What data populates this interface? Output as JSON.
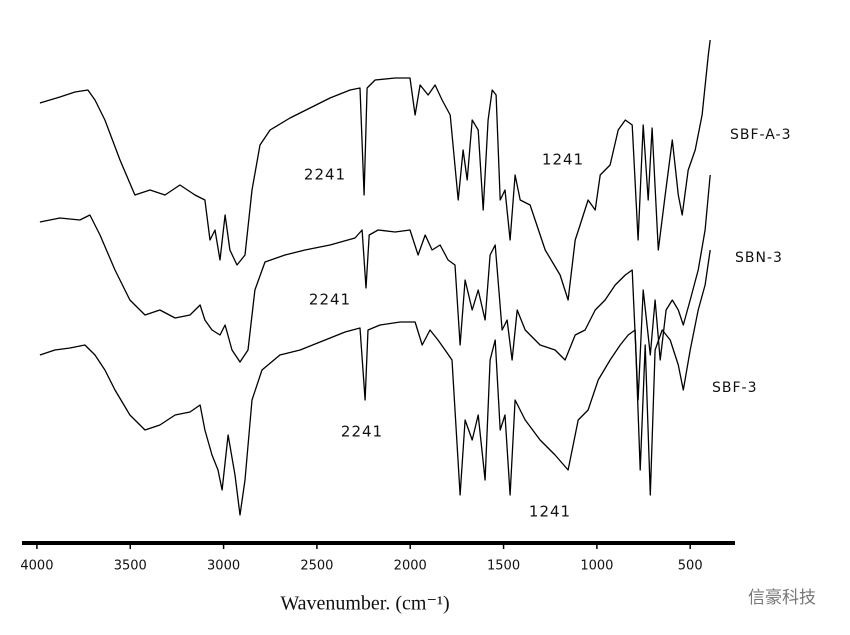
{
  "chart_data": {
    "type": "line",
    "x_label": "Wavenumber. (cm⁻¹)",
    "xlim": [
      4080,
      260
    ],
    "xticks": [
      4000,
      3500,
      3000,
      2500,
      2000,
      1500,
      1000,
      500
    ],
    "ylim": [
      0,
      106
    ],
    "annotations": [
      "2241",
      "2241",
      "2241",
      "1241",
      "1241"
    ],
    "watermark": "信豪科技",
    "series": [
      {
        "name": "SBF-A-3",
        "color": "#000000",
        "x": [
          3984,
          3877,
          3796,
          3727,
          3689,
          3636,
          3555,
          3475,
          3394,
          3314,
          3234,
          3153,
          3100,
          3073,
          3046,
          3019,
          2992,
          2966,
          2928,
          2885,
          2848,
          2805,
          2751,
          2644,
          2537,
          2430,
          2322,
          2269,
          2247,
          2231,
          2188,
          2081,
          2001,
          1974,
          1947,
          1904,
          1867,
          1829,
          1786,
          1743,
          1717,
          1695,
          1668,
          1636,
          1609,
          1583,
          1561,
          1540,
          1518,
          1492,
          1465,
          1438,
          1411,
          1358,
          1277,
          1197,
          1154,
          1116,
          1090,
          1047,
          1009,
          982,
          929,
          886,
          848,
          811,
          779,
          752,
          725,
          704,
          671,
          634,
          596,
          564,
          543,
          511,
          473,
          436,
          403,
          393
        ],
        "values": [
          91.4,
          92.6,
          93.6,
          94,
          92,
          88,
          80,
          73,
          74,
          73,
          75,
          73,
          72,
          64,
          66,
          60,
          69,
          62,
          59,
          61,
          74,
          83,
          86,
          88.4,
          90.4,
          92.4,
          94,
          94.4,
          73,
          94.4,
          96,
          96.4,
          96.4,
          89,
          95,
          93,
          95,
          92,
          89,
          72,
          82,
          76,
          88,
          86,
          70,
          88,
          94,
          93,
          72,
          74,
          64,
          77,
          72,
          71,
          62,
          57,
          52,
          64,
          67,
          72,
          70,
          77,
          79,
          86,
          88,
          87,
          64,
          87,
          72,
          86.4,
          62,
          73,
          84,
          73,
          69,
          78,
          82,
          89,
          101,
          104
        ]
      },
      {
        "name": "SBN-3",
        "color": "#000000",
        "x": [
          3984,
          3877,
          3770,
          3716,
          3662,
          3582,
          3502,
          3421,
          3341,
          3260,
          3180,
          3126,
          3100,
          3062,
          3019,
          2992,
          2955,
          2912,
          2869,
          2832,
          2778,
          2671,
          2564,
          2430,
          2296,
          2258,
          2237,
          2220,
          2172,
          2081,
          2001,
          1958,
          1920,
          1883,
          1840,
          1797,
          1760,
          1733,
          1706,
          1668,
          1636,
          1599,
          1572,
          1545,
          1508,
          1481,
          1454,
          1427,
          1384,
          1304,
          1224,
          1170,
          1116,
          1063,
          1009,
          956,
          902,
          848,
          811,
          779,
          752,
          714,
          688,
          661,
          629,
          596,
          564,
          537,
          500,
          457,
          420,
          393
        ],
        "values": [
          67.6,
          68.4,
          68,
          69,
          65,
          58,
          52,
          49,
          50,
          48.4,
          49,
          51,
          48,
          46,
          45,
          47,
          42,
          39.6,
          42,
          54,
          59.6,
          61,
          62,
          63,
          64.4,
          66,
          54.4,
          65,
          66,
          65.6,
          66,
          61,
          65,
          62,
          63,
          60,
          59,
          43,
          56,
          50,
          54,
          48,
          61,
          63,
          46,
          48,
          40,
          50,
          46,
          43,
          42,
          40,
          45,
          46,
          50,
          52,
          55,
          57,
          58,
          32,
          54,
          41,
          52,
          40,
          50,
          52,
          50,
          47,
          52,
          58,
          66,
          77
        ]
      },
      {
        "name": "SBF-3",
        "color": "#000000",
        "x": [
          3984,
          3904,
          3823,
          3743,
          3689,
          3636,
          3582,
          3502,
          3421,
          3341,
          3260,
          3180,
          3126,
          3100,
          3062,
          3030,
          3008,
          2976,
          2939,
          2912,
          2885,
          2848,
          2794,
          2698,
          2590,
          2456,
          2349,
          2269,
          2242,
          2226,
          2162,
          2054,
          1974,
          1936,
          1894,
          1851,
          1813,
          1776,
          1733,
          1706,
          1668,
          1636,
          1599,
          1572,
          1545,
          1518,
          1492,
          1465,
          1438,
          1384,
          1304,
          1224,
          1154,
          1100,
          1047,
          993,
          929,
          875,
          832,
          795,
          768,
          741,
          714,
          688,
          650,
          607,
          564,
          537,
          500,
          457,
          420,
          393
        ],
        "values": [
          41,
          42,
          42.4,
          43,
          41,
          38,
          34,
          29,
          26,
          27,
          29,
          29.6,
          31,
          26,
          21,
          18,
          14,
          25,
          17,
          9,
          16,
          32,
          38,
          41,
          42,
          44,
          45.6,
          46.4,
          32,
          46,
          47,
          47.6,
          47.6,
          43,
          46,
          44,
          42,
          40,
          13,
          28,
          24,
          29,
          16,
          40,
          44,
          26,
          29,
          13,
          32,
          28,
          24,
          21,
          18,
          28,
          30,
          36,
          40,
          43,
          45,
          46,
          18,
          43,
          13,
          42,
          46,
          44,
          39,
          34,
          42,
          50,
          55,
          62
        ]
      }
    ]
  }
}
